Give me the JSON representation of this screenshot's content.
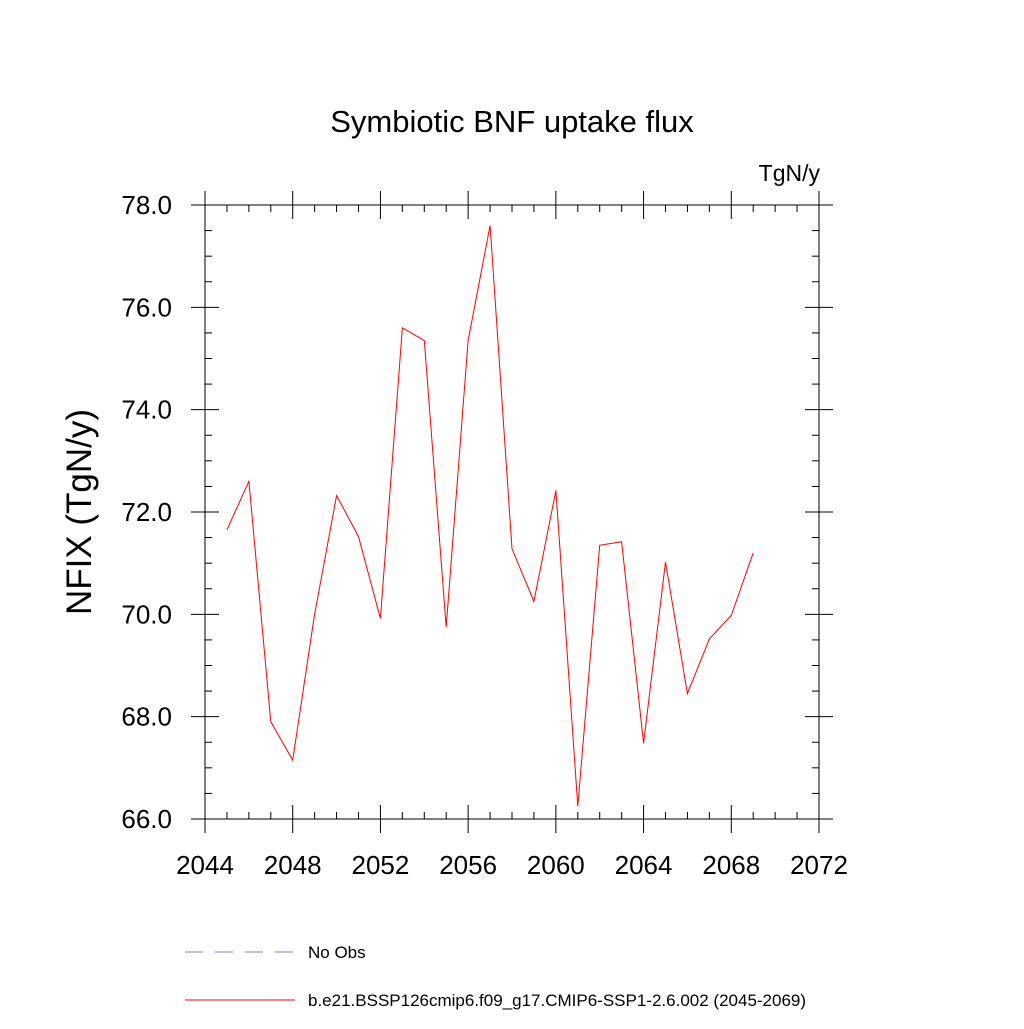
{
  "chart_data": {
    "type": "line",
    "title": "Symbiotic BNF uptake flux",
    "units_label": "TgN/y",
    "ylabel": "NFIX  (TgN/y)",
    "xlabel": "",
    "xlim": [
      2044,
      2072
    ],
    "ylim": [
      66.0,
      78.0
    ],
    "x_ticks": [
      2044,
      2048,
      2052,
      2056,
      2060,
      2064,
      2068,
      2072
    ],
    "x_tick_labels": [
      "2044",
      "2048",
      "2052",
      "2056",
      "2060",
      "2064",
      "2068",
      "2072"
    ],
    "y_ticks": [
      66,
      68,
      70,
      72,
      74,
      76,
      78
    ],
    "y_tick_labels": [
      "66.0",
      "68.0",
      "70.0",
      "72.0",
      "74.0",
      "76.0",
      "78.0"
    ],
    "grid": false,
    "legend_position": "bottom",
    "legend": [
      {
        "label": "No Obs",
        "color": "#7b7bd0",
        "style": "dashed"
      },
      {
        "label": "b.e21.BSSP126cmip6.f09_g17.CMIP6-SSP1-2.6.002 (2045-2069)",
        "color": "#ff0000",
        "style": "solid"
      }
    ],
    "series": [
      {
        "color": "#ff0000",
        "x": [
          2045,
          2046,
          2047,
          2048,
          2049,
          2050,
          2051,
          2052,
          2053,
          2054,
          2055,
          2056,
          2057,
          2058,
          2059,
          2060,
          2061,
          2062,
          2063,
          2064,
          2065,
          2066,
          2067,
          2068,
          2069
        ],
        "y": [
          71.65,
          72.6,
          67.9,
          67.15,
          70.0,
          72.32,
          71.52,
          69.92,
          75.6,
          75.35,
          69.75,
          75.35,
          77.6,
          71.28,
          70.25,
          72.42,
          66.25,
          71.35,
          71.42,
          67.48,
          71.02,
          68.45,
          69.52,
          69.98,
          71.2
        ]
      }
    ]
  }
}
